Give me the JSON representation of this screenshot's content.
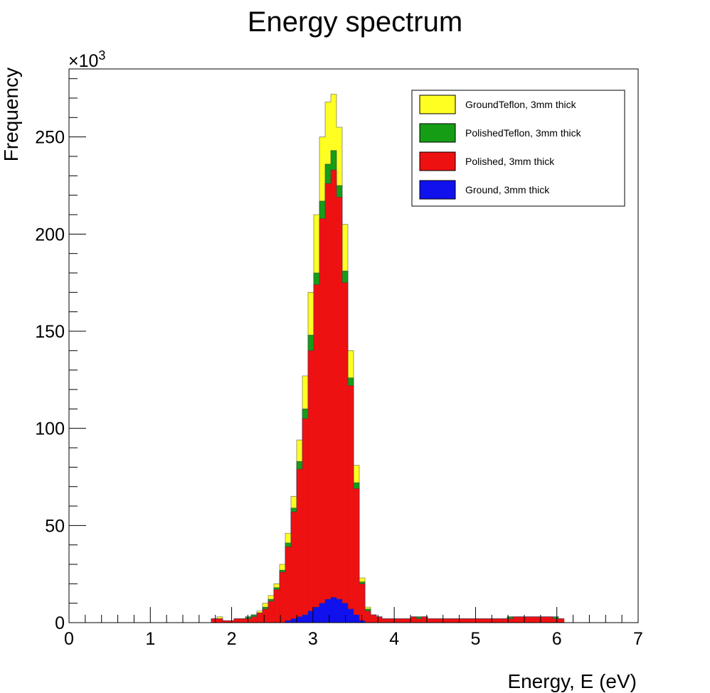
{
  "chart_data": {
    "type": "histogram",
    "title": "Energy spectrum",
    "xlabel": "Energy, E (eV)",
    "ylabel": "Frequency",
    "y_scale_label": "×10",
    "y_scale_exponent": "3",
    "xlim": [
      0,
      7
    ],
    "ylim": [
      0,
      285
    ],
    "x_ticks": [
      "0",
      "1",
      "2",
      "3",
      "4",
      "5",
      "6",
      "7"
    ],
    "y_ticks": [
      "0",
      "50",
      "100",
      "150",
      "200",
      "250"
    ],
    "grid": false,
    "legend_position": "top-right",
    "stacked": false,
    "bin_width": 0.07,
    "bin_edges_start": 1.75,
    "series": [
      {
        "name": "GroundTeflon, 3mm thick",
        "color": "#ffff22",
        "values": [
          2,
          3,
          1,
          1,
          2,
          2,
          3,
          4,
          6,
          10,
          14,
          20,
          30,
          46,
          65,
          94,
          127,
          170,
          210,
          250,
          268,
          272,
          255,
          205,
          140,
          81,
          23,
          8,
          4,
          3,
          2,
          2,
          2,
          2,
          2,
          3,
          3,
          3,
          2,
          2,
          2,
          2,
          2,
          2,
          2,
          2,
          2,
          2,
          2,
          2,
          2,
          2,
          3,
          3,
          3,
          3,
          3,
          3,
          3,
          3,
          3,
          2
        ]
      },
      {
        "name": "PolishedTeflon, 3mm thick",
        "color": "#169d16",
        "values": [
          2,
          2,
          1,
          1,
          2,
          2,
          3,
          4,
          5,
          8,
          12,
          18,
          27,
          41,
          59,
          83,
          110,
          148,
          180,
          217,
          236,
          243,
          225,
          181,
          126,
          72,
          21,
          7,
          4,
          3,
          2,
          2,
          2,
          2,
          2,
          3,
          3,
          3,
          2,
          2,
          2,
          2,
          2,
          2,
          2,
          2,
          2,
          2,
          2,
          2,
          2,
          2,
          3,
          3,
          3,
          3,
          3,
          3,
          3,
          3,
          3,
          2
        ]
      },
      {
        "name": "Polished, 3mm thick",
        "color": "#ee1111",
        "values": [
          2,
          2,
          1,
          1,
          2,
          2,
          2,
          3,
          5,
          7,
          11,
          17,
          26,
          39,
          57,
          79,
          105,
          140,
          174,
          208,
          226,
          233,
          219,
          175,
          122,
          69,
          20,
          6,
          4,
          3,
          2,
          2,
          2,
          2,
          2,
          3,
          2,
          3,
          2,
          2,
          2,
          2,
          2,
          2,
          2,
          2,
          2,
          2,
          2,
          2,
          2,
          2,
          2,
          3,
          3,
          3,
          3,
          3,
          3,
          3,
          2,
          2
        ]
      },
      {
        "name": "Ground, 3mm thick",
        "color": "#1111ee",
        "values": [
          0,
          0,
          0,
          0,
          0,
          0,
          0,
          0,
          0,
          0,
          0,
          0,
          0,
          1,
          2,
          3,
          4,
          6,
          8,
          10,
          12,
          13,
          12,
          10,
          7,
          4,
          1,
          0,
          0,
          0,
          0,
          0,
          0,
          0,
          0,
          0,
          0,
          0,
          0,
          0,
          0,
          0,
          0,
          0,
          0,
          0,
          0,
          0,
          0,
          0,
          0,
          0,
          0,
          0,
          0,
          0,
          0,
          0,
          0,
          0,
          0,
          0
        ]
      }
    ]
  }
}
